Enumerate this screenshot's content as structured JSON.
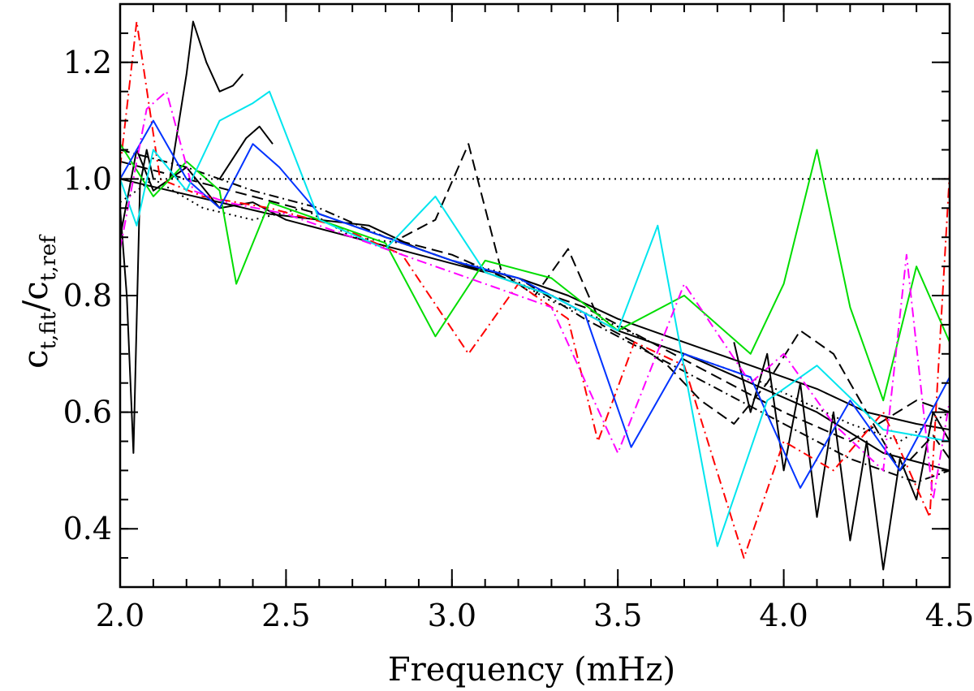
{
  "chart_data": {
    "type": "line",
    "title": "",
    "xlabel": "Frequency (mHz)",
    "ylabel": {
      "main": "c",
      "sub_fit": "t,fit",
      "slash": "/",
      "main2": "c",
      "sub_ref": "t,ref"
    },
    "xlim": [
      2.0,
      4.5
    ],
    "ylim": [
      0.3,
      1.3
    ],
    "x_ticks": [
      2.0,
      2.5,
      3.0,
      3.5,
      4.0,
      4.5
    ],
    "x_tick_labels": [
      "2.0",
      "2.5",
      "3.0",
      "3.5",
      "4.0",
      "4.5"
    ],
    "y_ticks": [
      0.4,
      0.6,
      0.8,
      1.0,
      1.2
    ],
    "y_tick_labels": [
      "0.4",
      "0.6",
      "0.8",
      "1.0",
      "1.2"
    ],
    "reference_line": {
      "y": 1.0,
      "style": "dotted",
      "color": "#000000"
    },
    "series": [
      {
        "name": "black-solid-1",
        "color": "#000000",
        "dash": "solid",
        "x": [
          2.0,
          2.15,
          2.3,
          2.45,
          2.6,
          2.75,
          2.9,
          3.05,
          3.2,
          3.35,
          3.5,
          3.65,
          3.8,
          3.95,
          4.1,
          4.25,
          4.4,
          4.5
        ],
        "y": [
          1.0,
          0.98,
          0.96,
          0.94,
          0.93,
          0.92,
          0.88,
          0.85,
          0.83,
          0.8,
          0.76,
          0.73,
          0.7,
          0.67,
          0.64,
          0.6,
          0.58,
          0.57
        ]
      },
      {
        "name": "black-dashed-1",
        "color": "#000000",
        "dash": "dashed",
        "x": [
          2.0,
          2.2,
          2.4,
          2.6,
          2.8,
          3.0,
          3.2,
          3.4,
          3.6,
          3.8,
          4.0,
          4.2,
          4.4,
          4.5
        ],
        "y": [
          1.03,
          1.0,
          0.97,
          0.94,
          0.9,
          0.87,
          0.82,
          0.78,
          0.72,
          0.66,
          0.6,
          0.55,
          0.62,
          0.6
        ]
      },
      {
        "name": "black-dotted-1",
        "color": "#000000",
        "dash": "dotted",
        "x": [
          2.0,
          2.1,
          2.25,
          2.4,
          2.55,
          2.7,
          2.85,
          3.0,
          3.15,
          3.3,
          3.45,
          3.6,
          3.75,
          3.9,
          4.05,
          4.2,
          4.35,
          4.5
        ],
        "y": [
          0.96,
          1.0,
          0.95,
          0.93,
          0.95,
          0.9,
          0.89,
          0.86,
          0.84,
          0.79,
          0.76,
          0.72,
          0.69,
          0.66,
          0.62,
          0.58,
          0.55,
          0.6
        ]
      },
      {
        "name": "black-dashdot-1",
        "color": "#000000",
        "dash": "dashdot",
        "x": [
          2.0,
          2.2,
          2.4,
          2.6,
          2.8,
          3.0,
          3.2,
          3.4,
          3.6,
          3.8,
          4.0,
          4.2,
          4.4,
          4.5
        ],
        "y": [
          1.05,
          1.02,
          0.98,
          0.95,
          0.9,
          0.86,
          0.83,
          0.76,
          0.7,
          0.64,
          0.58,
          0.52,
          0.48,
          0.5
        ]
      },
      {
        "name": "black-solid-2",
        "color": "#000000",
        "dash": "solid",
        "x": [
          2.0,
          2.05,
          2.1,
          2.2,
          2.3,
          2.4,
          2.5,
          2.7,
          2.9,
          3.1,
          3.3,
          3.5,
          3.7,
          3.9,
          4.1,
          4.3,
          4.5
        ],
        "y": [
          0.9,
          1.05,
          0.98,
          1.02,
          0.95,
          0.96,
          0.93,
          0.9,
          0.87,
          0.84,
          0.8,
          0.74,
          0.7,
          0.65,
          0.6,
          0.53,
          0.5
        ]
      },
      {
        "name": "black-spike-low",
        "color": "#000000",
        "dash": "solid",
        "x": [
          2.0,
          2.02,
          2.04,
          2.06,
          2.08,
          2.1
        ],
        "y": [
          0.95,
          0.8,
          0.53,
          0.99,
          1.05,
          1.0
        ]
      },
      {
        "name": "black-upper-run",
        "color": "#000000",
        "dash": "solid",
        "x": [
          2.15,
          2.2,
          2.22,
          2.26,
          2.3,
          2.34,
          2.37
        ],
        "y": [
          1.0,
          1.18,
          1.27,
          1.2,
          1.15,
          1.16,
          1.18
        ]
      },
      {
        "name": "black-upper-run-2",
        "color": "#000000",
        "dash": "solid",
        "x": [
          2.3,
          2.38,
          2.42,
          2.46
        ],
        "y": [
          1.0,
          1.07,
          1.09,
          1.06
        ]
      },
      {
        "name": "black-high-freq",
        "color": "#000000",
        "dash": "solid",
        "x": [
          3.85,
          3.9,
          3.95,
          4.0,
          4.05,
          4.1,
          4.15,
          4.2,
          4.25,
          4.3,
          4.35,
          4.4,
          4.45,
          4.5
        ],
        "y": [
          0.72,
          0.6,
          0.7,
          0.5,
          0.65,
          0.42,
          0.6,
          0.38,
          0.55,
          0.33,
          0.52,
          0.45,
          0.6,
          0.55
        ]
      },
      {
        "name": "black-dashed-2",
        "color": "#000000",
        "dash": "dashed",
        "x": [
          2.85,
          2.95,
          3.05,
          3.15,
          3.25,
          3.35,
          3.45,
          3.55,
          3.65,
          3.75,
          3.85,
          3.95,
          4.05,
          4.15,
          4.25,
          4.35,
          4.45,
          4.5
        ],
        "y": [
          0.9,
          0.93,
          1.06,
          0.84,
          0.8,
          0.88,
          0.75,
          0.72,
          0.68,
          0.62,
          0.58,
          0.65,
          0.74,
          0.7,
          0.6,
          0.5,
          0.56,
          0.52
        ]
      },
      {
        "name": "red",
        "color": "#ff0000",
        "dash": "dashdot",
        "x": [
          2.0,
          2.05,
          2.12,
          2.25,
          2.45,
          2.65,
          2.85,
          3.05,
          3.2,
          3.35,
          3.44,
          3.55,
          3.7,
          3.88,
          4.0,
          4.15,
          4.3,
          4.44,
          4.5
        ],
        "y": [
          1.02,
          1.27,
          1.0,
          0.97,
          0.95,
          0.92,
          0.87,
          0.7,
          0.82,
          0.76,
          0.55,
          0.72,
          0.68,
          0.35,
          0.55,
          0.5,
          0.6,
          0.42,
          1.01
        ]
      },
      {
        "name": "green",
        "color": "#00dd00",
        "dash": "solid",
        "x": [
          2.0,
          2.1,
          2.2,
          2.3,
          2.35,
          2.45,
          2.6,
          2.8,
          2.95,
          3.1,
          3.3,
          3.5,
          3.7,
          3.9,
          4.0,
          4.1,
          4.2,
          4.3,
          4.4,
          4.5
        ],
        "y": [
          1.06,
          0.97,
          1.03,
          0.98,
          0.82,
          0.96,
          0.93,
          0.89,
          0.73,
          0.86,
          0.83,
          0.74,
          0.8,
          0.7,
          0.82,
          1.05,
          0.78,
          0.62,
          0.85,
          0.72
        ]
      },
      {
        "name": "blue",
        "color": "#0033ff",
        "dash": "solid",
        "x": [
          2.0,
          2.1,
          2.2,
          2.3,
          2.4,
          2.48,
          2.6,
          2.8,
          3.0,
          3.2,
          3.4,
          3.54,
          3.7,
          3.9,
          4.05,
          4.2,
          4.35,
          4.5
        ],
        "y": [
          1.0,
          1.1,
          1.0,
          0.95,
          1.06,
          1.02,
          0.94,
          0.9,
          0.86,
          0.83,
          0.77,
          0.54,
          0.7,
          0.66,
          0.47,
          0.62,
          0.5,
          0.66
        ]
      },
      {
        "name": "cyan",
        "color": "#00e5ee",
        "dash": "solid",
        "x": [
          2.0,
          2.05,
          2.1,
          2.2,
          2.3,
          2.4,
          2.45,
          2.6,
          2.8,
          2.95,
          3.1,
          3.3,
          3.5,
          3.62,
          3.8,
          3.95,
          4.1,
          4.3,
          4.5
        ],
        "y": [
          1.0,
          0.92,
          1.05,
          0.98,
          1.1,
          1.13,
          1.15,
          0.93,
          0.88,
          0.97,
          0.84,
          0.8,
          0.74,
          0.92,
          0.37,
          0.62,
          0.68,
          0.57,
          0.55
        ]
      },
      {
        "name": "magenta",
        "color": "#ff00ff",
        "dash": "dashdot",
        "x": [
          2.0,
          2.08,
          2.14,
          2.22,
          2.32,
          2.5,
          2.7,
          2.9,
          3.1,
          3.3,
          3.5,
          3.7,
          3.9,
          4.0,
          4.15,
          4.3,
          4.37,
          4.45,
          4.5
        ],
        "y": [
          0.88,
          1.12,
          1.15,
          0.98,
          0.96,
          0.94,
          0.9,
          0.86,
          0.82,
          0.78,
          0.53,
          0.82,
          0.65,
          0.7,
          0.58,
          0.5,
          0.87,
          0.45,
          0.62
        ]
      }
    ]
  }
}
